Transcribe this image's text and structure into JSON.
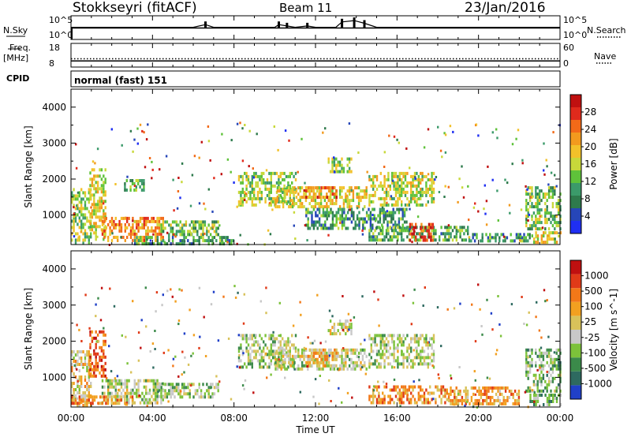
{
  "header": {
    "station": "Stokkseyri (fitACF)",
    "beam": "Beam 11",
    "date": "23/Jan/2016"
  },
  "left_labels": {
    "nsky": "N.Sky",
    "freq": "Freq.",
    "mhz": "[MHz]",
    "cpid": "CPID"
  },
  "right_labels": {
    "nsearch": "N.Search",
    "nave": "Nave"
  },
  "cpid_text": "normal (fast) 151",
  "colors": {
    "power": [
      "#1f2ff2",
      "#2646b8",
      "#2e7a4c",
      "#3b9a6a",
      "#5fc23a",
      "#c8d83a",
      "#f2c12a",
      "#f29a1e",
      "#f26a18",
      "#e02a1c",
      "#c01010"
    ],
    "velocity": [
      "#2040c8",
      "#2e6a60",
      "#3b8a4a",
      "#7cc23a",
      "#c8c8c8",
      "#d8c25a",
      "#f2a020",
      "#f27818",
      "#e03a18",
      "#c01010"
    ]
  },
  "chart_data": [
    {
      "type": "line",
      "title": "N.Sky / N.Search",
      "ylabel_left": "N.Sky",
      "ylabel_right": "N.Search",
      "y_ticks_left": [
        "10^5",
        "10^0"
      ],
      "y_ticks_right": [
        "10^5",
        "10^0"
      ],
      "x_range_hours": [
        0,
        24
      ],
      "series": [
        {
          "name": "N.Sky",
          "x": [
            0,
            1,
            2,
            3,
            4,
            5,
            6,
            6.6,
            7,
            8,
            9,
            10,
            10.2,
            10.6,
            11,
            11.6,
            12,
            13,
            13.3,
            13.9,
            14.4,
            15,
            16,
            17,
            18,
            19,
            20,
            21,
            22,
            23,
            24
          ],
          "y": [
            2,
            2,
            2,
            2,
            2,
            2,
            2,
            4,
            2,
            2,
            2,
            2,
            4,
            3,
            2,
            3,
            2,
            2,
            6,
            7,
            5,
            2,
            2,
            2,
            2,
            2,
            2,
            2,
            2,
            2,
            2
          ]
        }
      ]
    },
    {
      "type": "line",
      "title": "Freq / Nave",
      "y_ticks_left": [
        "18",
        "8"
      ],
      "y_ticks_right": [
        "60",
        "0"
      ],
      "x_range_hours": [
        0,
        24
      ],
      "series": [
        {
          "name": "Freq",
          "x": [
            0,
            24
          ],
          "y": [
            10.6,
            10.6
          ]
        },
        {
          "name": "Nave",
          "x": [
            0,
            24
          ],
          "y": [
            21,
            21
          ]
        }
      ]
    },
    {
      "type": "heatmap",
      "title": "Power",
      "ylabel": "Slant Range [km]",
      "colorbar_label": "Power [dB]",
      "colorbar_ticks": [
        "28",
        "24",
        "20",
        "16",
        "12",
        "8",
        "4"
      ],
      "y_ticks": [
        "4000",
        "3000",
        "2000",
        "1000"
      ],
      "ylim": [
        180,
        4500
      ],
      "x_range_hours": [
        0,
        24
      ],
      "patches": [
        {
          "t0": 0,
          "t1": 1.0,
          "r0": 250,
          "r1": 1750,
          "p": 0.45
        },
        {
          "t0": 0.9,
          "t1": 1.7,
          "r0": 300,
          "r1": 2300,
          "p": 0.55
        },
        {
          "t0": 1.5,
          "t1": 4.5,
          "r0": 250,
          "r1": 950,
          "p": 0.7
        },
        {
          "t0": 2.6,
          "t1": 3.6,
          "r0": 1700,
          "r1": 2000,
          "p": 0.35
        },
        {
          "t0": 4.3,
          "t1": 7.2,
          "r0": 420,
          "r1": 850,
          "p": 0.4
        },
        {
          "t0": 3,
          "t1": 8,
          "r0": 200,
          "r1": 420,
          "p": 0.3
        },
        {
          "t0": 8.2,
          "t1": 11.0,
          "r0": 1300,
          "r1": 2200,
          "p": 0.45
        },
        {
          "t0": 10.0,
          "t1": 14.5,
          "r0": 1200,
          "r1": 1800,
          "p": 0.55
        },
        {
          "t0": 11.5,
          "t1": 13.0,
          "r0": 1500,
          "r1": 1800,
          "p": 0.75
        },
        {
          "t0": 11.5,
          "t1": 16.5,
          "r0": 600,
          "r1": 1200,
          "p": 0.3
        },
        {
          "t0": 12.6,
          "t1": 13.8,
          "r0": 2200,
          "r1": 2600,
          "p": 0.45
        },
        {
          "t0": 14.6,
          "t1": 17.8,
          "r0": 1300,
          "r1": 2200,
          "p": 0.5
        },
        {
          "t0": 14.6,
          "t1": 19.5,
          "r0": 280,
          "r1": 700,
          "p": 0.35
        },
        {
          "t0": 16.6,
          "t1": 17.8,
          "r0": 330,
          "r1": 780,
          "p": 0.85
        },
        {
          "t0": 19.5,
          "t1": 22.5,
          "r0": 250,
          "r1": 500,
          "p": 0.3
        },
        {
          "t0": 22.3,
          "t1": 24,
          "r0": 600,
          "r1": 1800,
          "p": 0.4
        },
        {
          "t0": 22.5,
          "t1": 24,
          "r0": 250,
          "r1": 550,
          "p": 0.55
        }
      ]
    },
    {
      "type": "heatmap",
      "title": "Velocity",
      "ylabel": "Slant Range [km]",
      "colorbar_label": "Velocity [m s^-1]",
      "colorbar_ticks": [
        "1000",
        "500",
        "100",
        "25",
        "-25",
        "-100",
        "-500",
        "-1000"
      ],
      "y_ticks": [
        "4000",
        "3000",
        "2000",
        "1000"
      ],
      "ylim": [
        180,
        4500
      ],
      "x_range_hours": [
        0,
        24
      ],
      "x_ticks": [
        "00:00",
        "04:00",
        "08:00",
        "12:00",
        "16:00",
        "20:00",
        "00:00"
      ],
      "xlabel": "Time UT",
      "patches": [
        {
          "t0": 0,
          "t1": 1.0,
          "r0": 250,
          "r1": 1750,
          "v": 0.55
        },
        {
          "t0": 0.9,
          "t1": 1.7,
          "r0": 1000,
          "r1": 2300,
          "v": 0.8
        },
        {
          "t0": 1.5,
          "t1": 4.5,
          "r0": 300,
          "r1": 950,
          "v": 0.45
        },
        {
          "t0": 0,
          "t1": 3,
          "r0": 250,
          "r1": 500,
          "v": 0.7
        },
        {
          "t0": 4.3,
          "t1": 7.2,
          "r0": 420,
          "r1": 850,
          "v": 0.4
        },
        {
          "t0": 8.2,
          "t1": 11.0,
          "r0": 1300,
          "r1": 2200,
          "v": 0.42
        },
        {
          "t0": 10.0,
          "t1": 14.5,
          "r0": 1200,
          "r1": 1800,
          "v": 0.45
        },
        {
          "t0": 11.5,
          "t1": 13.0,
          "r0": 1300,
          "r1": 1800,
          "v": 0.62
        },
        {
          "t0": 12.6,
          "t1": 13.8,
          "r0": 2200,
          "r1": 2600,
          "v": 0.48
        },
        {
          "t0": 14.6,
          "t1": 17.8,
          "r0": 1300,
          "r1": 2200,
          "v": 0.43
        },
        {
          "t0": 14.6,
          "t1": 18.5,
          "r0": 330,
          "r1": 780,
          "v": 0.7
        },
        {
          "t0": 18.5,
          "t1": 22.0,
          "r0": 300,
          "r1": 750,
          "v": 0.65
        },
        {
          "t0": 22.3,
          "t1": 24,
          "r0": 600,
          "r1": 1800,
          "v": 0.35
        },
        {
          "t0": 22.5,
          "t1": 24,
          "r0": 250,
          "r1": 550,
          "v": 0.3
        }
      ]
    }
  ]
}
